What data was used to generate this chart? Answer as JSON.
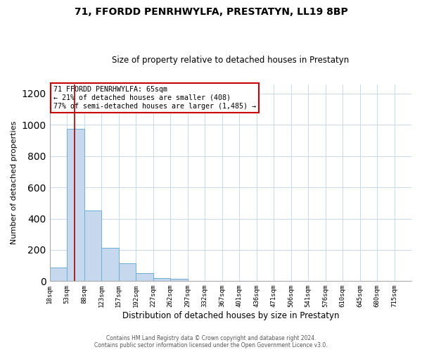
{
  "title": "71, FFORDD PENRHWYLFA, PRESTATYN, LL19 8BP",
  "subtitle": "Size of property relative to detached houses in Prestatyn",
  "xlabel": "Distribution of detached houses by size in Prestatyn",
  "ylabel": "Number of detached properties",
  "bar_color": "#c5d8ee",
  "bar_edge_color": "#6baed6",
  "background_color": "#ffffff",
  "grid_color": "#c8d8e8",
  "bin_labels": [
    "18sqm",
    "53sqm",
    "88sqm",
    "123sqm",
    "157sqm",
    "192sqm",
    "227sqm",
    "262sqm",
    "297sqm",
    "332sqm",
    "367sqm",
    "401sqm",
    "436sqm",
    "471sqm",
    "506sqm",
    "541sqm",
    "576sqm",
    "610sqm",
    "645sqm",
    "680sqm",
    "715sqm"
  ],
  "bar_heights": [
    85,
    975,
    450,
    215,
    115,
    50,
    20,
    15,
    0,
    0,
    0,
    0,
    0,
    0,
    0,
    0,
    0,
    0,
    0,
    0,
    0
  ],
  "ylim": [
    0,
    1260
  ],
  "yticks": [
    0,
    200,
    400,
    600,
    800,
    1000,
    1200
  ],
  "property_line_idx": 1,
  "property_line_label": "71 FFORDD PENRHWYLFA: 65sqm",
  "annotation_line1": "← 21% of detached houses are smaller (408)",
  "annotation_line2": "77% of semi-detached houses are larger (1,485) →",
  "annotation_box_color": "#ffffff",
  "annotation_box_edge_color": "#cc0000",
  "red_line_color": "#aa0000",
  "footer_line1": "Contains HM Land Registry data © Crown copyright and database right 2024.",
  "footer_line2": "Contains public sector information licensed under the Open Government Licence v3.0.",
  "n_bins": 21
}
